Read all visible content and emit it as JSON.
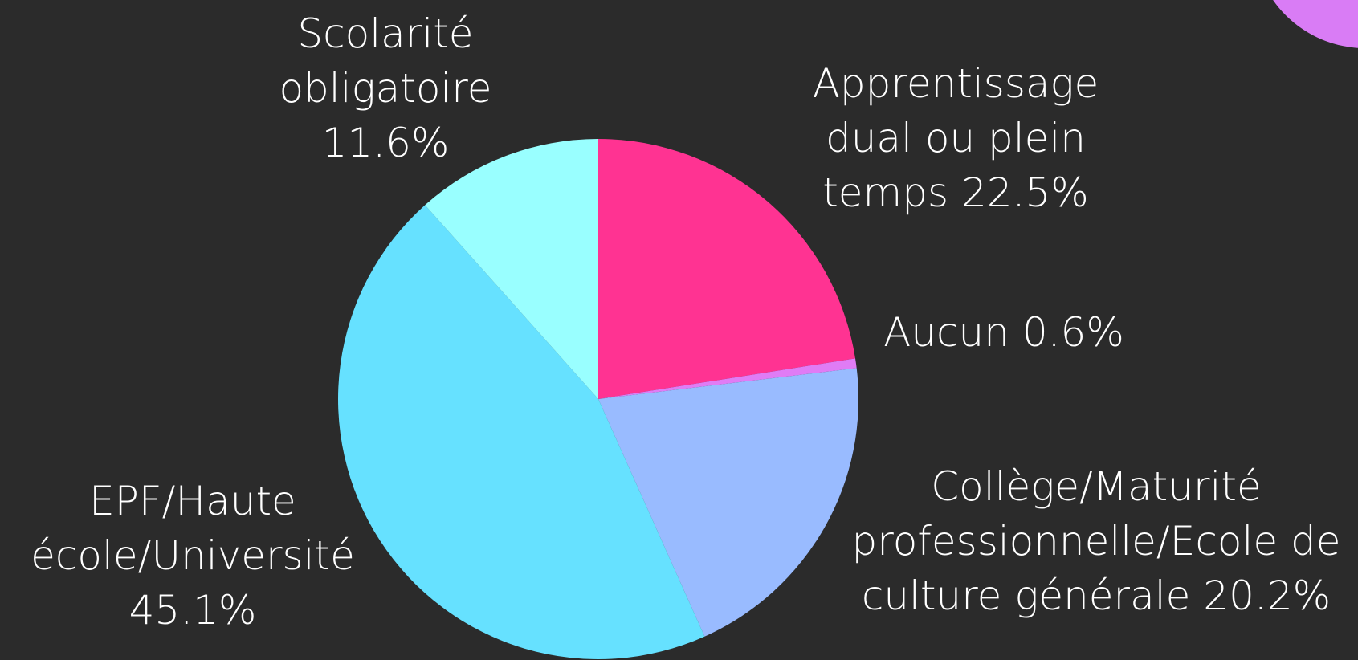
{
  "chart_data": {
    "type": "pie",
    "categories": [
      "Apprentissage dual ou plein temps",
      "Aucun",
      "Collège/Maturité professionnelle/Ecole de culture générale",
      "EPF/Haute école/Université",
      "Scolarité obligatoire"
    ],
    "values": [
      22.5,
      0.6,
      20.2,
      45.1,
      11.6
    ],
    "value_labels": [
      "22.5%",
      "0.6%",
      "20.2%",
      "45.1%",
      "11.6%"
    ],
    "colors": [
      "#ff3392",
      "#e07cf5",
      "#99bbff",
      "#66e1ff",
      "#99ffff"
    ]
  }
}
